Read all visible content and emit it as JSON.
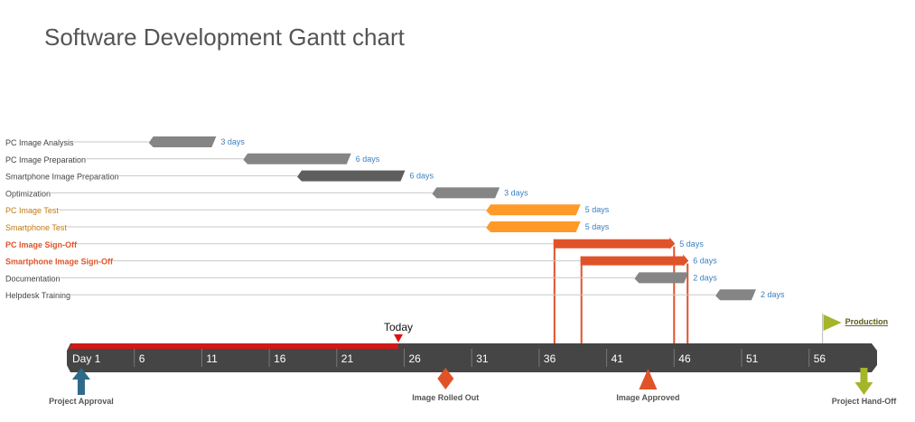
{
  "chart_data": {
    "type": "gantt",
    "title": "Software Development Gantt chart",
    "x_axis": {
      "unit": "day",
      "range": [
        1,
        61
      ],
      "tick_labels": [
        "Day 1",
        "6",
        "11",
        "16",
        "21",
        "26",
        "31",
        "36",
        "41",
        "46",
        "51",
        "56"
      ]
    },
    "tasks": [
      {
        "name": "PC Image Analysis",
        "start": 7,
        "end": 12,
        "duration_label": "3 days",
        "color": "#858585",
        "label_color": "#444444",
        "style": "bar"
      },
      {
        "name": "PC Image Preparation",
        "start": 14,
        "end": 22,
        "duration_label": "6 days",
        "color": "#858585",
        "label_color": "#444444",
        "style": "bar"
      },
      {
        "name": "Smartphone Image Preparation",
        "start": 18,
        "end": 26,
        "duration_label": "6 days",
        "color": "#5e5e5e",
        "label_color": "#444444",
        "style": "bar"
      },
      {
        "name": "Optimization",
        "start": 28,
        "end": 33,
        "duration_label": "3 days",
        "color": "#858585",
        "label_color": "#444444",
        "style": "bar"
      },
      {
        "name": "PC Image Test",
        "start": 32,
        "end": 39,
        "duration_label": "5 days",
        "color": "#ff9a28",
        "label_color": "#c07a10",
        "style": "bar"
      },
      {
        "name": "Smartphone Test",
        "start": 32,
        "end": 39,
        "duration_label": "5 days",
        "color": "#ff9a28",
        "label_color": "#c07a10",
        "style": "bar"
      },
      {
        "name": "PC Image Sign-Off",
        "start": 37,
        "end": 46,
        "duration_label": "5 days",
        "color": "#e05328",
        "label_color": "#e05328",
        "style": "arrow"
      },
      {
        "name": "Smartphone Image Sign-Off",
        "start": 39,
        "end": 47,
        "duration_label": "6 days",
        "color": "#e05328",
        "label_color": "#e05328",
        "style": "arrow"
      },
      {
        "name": "Documentation",
        "start": 43,
        "end": 47,
        "duration_label": "2 days",
        "color": "#858585",
        "label_color": "#444444",
        "style": "bar"
      },
      {
        "name": "Helpdesk Training",
        "start": 49,
        "end": 52,
        "duration_label": "2 days",
        "color": "#858585",
        "label_color": "#444444",
        "style": "bar"
      }
    ],
    "today": {
      "label": "Today",
      "day": 25.5,
      "color": "#e01010"
    },
    "milestones": [
      {
        "name": "Project Approval",
        "day": 2,
        "shape": "arrow-up",
        "color": "#2e6a8a"
      },
      {
        "name": "Image Rolled Out",
        "day": 29,
        "shape": "diamond",
        "color": "#e05328"
      },
      {
        "name": "Image Approved",
        "day": 44,
        "shape": "triangle",
        "color": "#e05328"
      },
      {
        "name": "Project Hand-Off",
        "day": 60,
        "shape": "arrow-down",
        "color": "#a5b52a"
      },
      {
        "name": "Production",
        "day": 57,
        "shape": "flag",
        "color": "#a5b52a"
      }
    ],
    "duration_label_color": "#3a7fc0",
    "timeline_color": "#454545"
  }
}
